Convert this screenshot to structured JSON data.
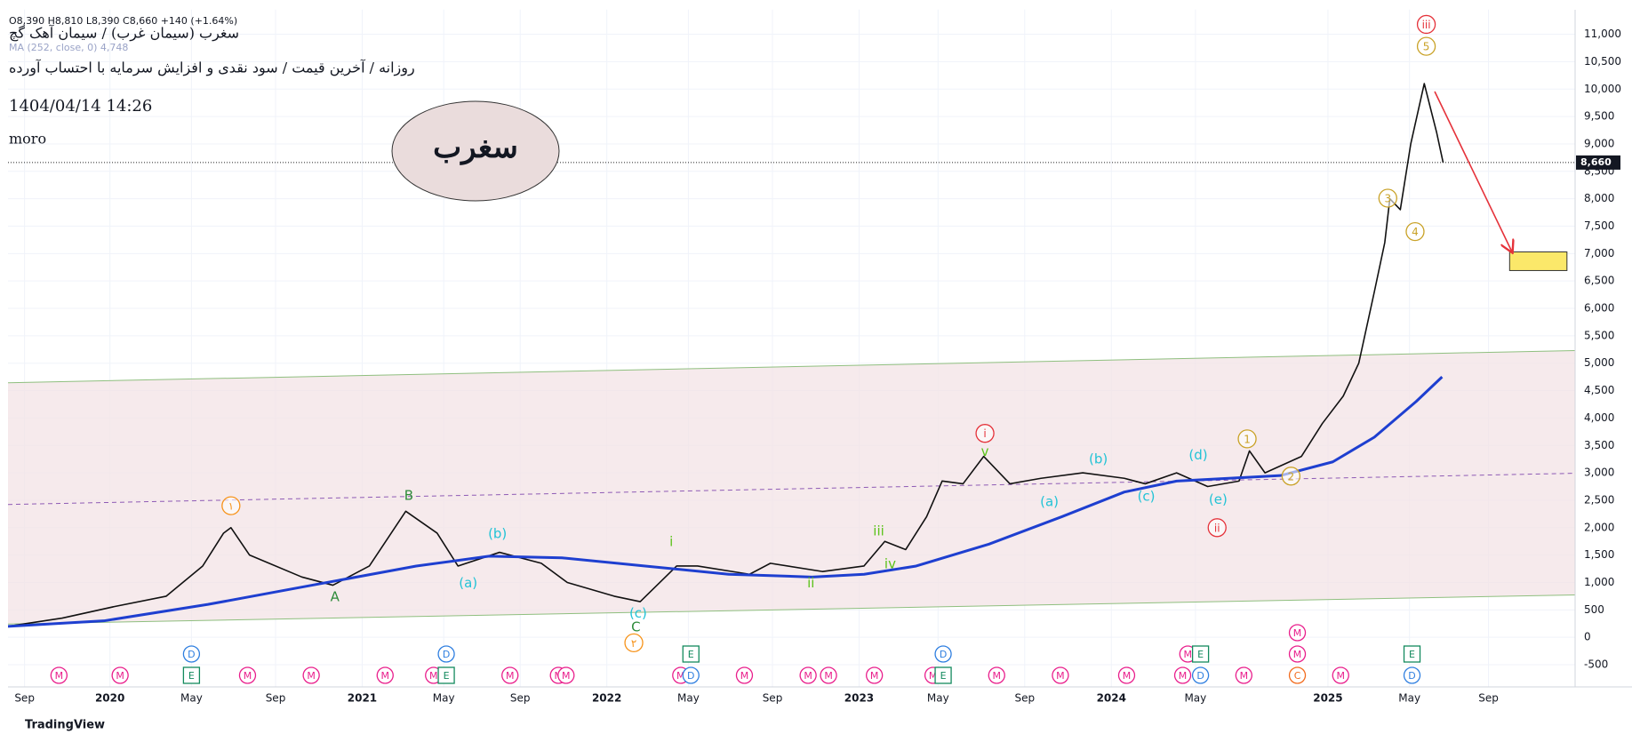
{
  "chart_data": {
    "type": "line",
    "title": "سغرب (سیمان غرب) / سیمان آهک گچ",
    "subtitle": "روزانه / آخرین قیمت / سود نقدی و افزایش سرمایه با احتساب آورده",
    "timestamp": "1404/04/14 14:26",
    "author": "moro",
    "badge": "سغرب",
    "ohlc_text": "O8,390 H8,810 L8,390 C8,660 +140 (+1.64%)",
    "ma_legend": "MA (252, close, 0) 4,748",
    "footer": "TradingView",
    "last_price": {
      "value": 8660,
      "label": "8,660"
    },
    "xlim": [
      2019.6,
      2025.75
    ],
    "ylim": [
      -900,
      11450
    ],
    "grid": true,
    "xticks": [
      {
        "value": 2019.665,
        "label": "Sep"
      },
      2020,
      {
        "value": 2020.32,
        "label": "May"
      },
      {
        "value": 2020.65,
        "label": "Sep"
      },
      {
        "value": 2020.99,
        "label": "2021"
      },
      {
        "value": 2021.31,
        "label": "May"
      },
      {
        "value": 2021.61,
        "label": "Sep"
      },
      {
        "value": 2021.95,
        "label": "2022"
      },
      {
        "value": 2022.27,
        "label": "May"
      },
      {
        "value": 2022.6,
        "label": "Sep"
      },
      {
        "value": 2022.94,
        "label": "2023"
      },
      {
        "value": 2023.25,
        "label": "May"
      },
      {
        "value": 2023.59,
        "label": "Sep"
      },
      {
        "value": 2023.93,
        "label": "2024"
      },
      {
        "value": 2024.26,
        "label": "May"
      },
      {
        "value": 2024.78,
        "label": "2025"
      },
      {
        "value": 2025.1,
        "label": "May"
      },
      {
        "value": 2025.41,
        "label": "Sep"
      }
    ],
    "yticks": [
      -500,
      0,
      500,
      {
        "value": 1000,
        "label": "1,000"
      },
      {
        "value": 1500,
        "label": "1,500"
      },
      {
        "value": 2000,
        "label": "2,000"
      },
      {
        "value": 2500,
        "label": "2,500"
      },
      {
        "value": 3000,
        "label": "3,000"
      },
      {
        "value": 3500,
        "label": "3,500"
      },
      {
        "value": 4000,
        "label": "4,000"
      },
      {
        "value": 4500,
        "label": "4,500"
      },
      {
        "value": 5000,
        "label": "5,000"
      },
      {
        "value": 5500,
        "label": "5,500"
      },
      {
        "value": 6000,
        "label": "6,000"
      },
      {
        "value": 6500,
        "label": "6,500"
      },
      {
        "value": 7000,
        "label": "7,000"
      },
      {
        "value": 7500,
        "label": "7,500"
      },
      {
        "value": 8000,
        "label": "8,000"
      },
      {
        "value": 8500,
        "label": "8,500"
      },
      {
        "value": 9000,
        "label": "9,000"
      },
      {
        "value": 9500,
        "label": "9,500"
      },
      {
        "value": 10000,
        "label": "10,000"
      },
      {
        "value": 10500,
        "label": "10,500"
      },
      {
        "value": 11000,
        "label": "11,000"
      }
    ],
    "series": [
      {
        "name": "Price",
        "color": "#111111",
        "x": [
          2019.6,
          2019.813,
          2020.017,
          2020.221,
          2020.364,
          2020.446,
          2020.475,
          2020.548,
          2020.753,
          2020.875,
          2021.018,
          2021.161,
          2021.284,
          2021.366,
          2021.529,
          2021.693,
          2021.795,
          2021.979,
          2022.081,
          2022.224,
          2022.306,
          2022.51,
          2022.592,
          2022.796,
          2022.959,
          2023.041,
          2023.123,
          2023.205,
          2023.266,
          2023.348,
          2023.429,
          2023.532,
          2023.654,
          2023.818,
          2023.981,
          2024.063,
          2024.186,
          2024.308,
          2024.431,
          2024.472,
          2024.533,
          2024.676,
          2024.758,
          2024.84,
          2024.901,
          2024.962,
          2025.003,
          2025.023,
          2025.064,
          2025.105,
          2025.158,
          2025.207,
          2025.232
        ],
        "values": [
          200,
          350,
          560,
          750,
          1300,
          1900,
          2000,
          1500,
          1100,
          950,
          1300,
          2300,
          1900,
          1300,
          1550,
          1350,
          1000,
          750,
          650,
          1300,
          1300,
          1150,
          1350,
          1200,
          1300,
          1750,
          1600,
          2200,
          2850,
          2800,
          3300,
          2800,
          2900,
          3000,
          2900,
          2800,
          3000,
          2750,
          2850,
          3400,
          3000,
          3300,
          3900,
          4400,
          5000,
          6300,
          7200,
          8000,
          7800,
          9000,
          10100,
          9200,
          8660
        ]
      },
      {
        "name": "MA (252)",
        "color": "#1e3fd0",
        "x": [
          2019.6,
          2019.976,
          2020.385,
          2020.793,
          2021.202,
          2021.488,
          2021.774,
          2022.101,
          2022.428,
          2022.755,
          2022.96,
          2023.164,
          2023.45,
          2023.736,
          2023.981,
          2024.186,
          2024.39,
          2024.594,
          2024.799,
          2024.962,
          2025.126,
          2025.228
        ],
        "values": [
          200,
          300,
          600,
          950,
          1300,
          1480,
          1450,
          1300,
          1150,
          1100,
          1150,
          1300,
          1700,
          2200,
          2650,
          2850,
          2900,
          2950,
          3200,
          3650,
          4300,
          4750
        ]
      }
    ],
    "channel": {
      "upper": [
        [
          2019.6,
          4643
        ],
        [
          2025.75,
          5231
        ]
      ],
      "lower": [
        [
          2019.6,
          241
        ],
        [
          2025.75,
          772
        ]
      ],
      "middle": [
        [
          2019.6,
          2423
        ],
        [
          2025.75,
          2992
        ]
      ],
      "fill": "#f3e3e5",
      "edge_color": "#8fbf7f",
      "middle_color": "#8e5bb5"
    },
    "arrow": {
      "from": [
        2025.199,
        9956
      ],
      "to": [
        2025.502,
        7034
      ],
      "color": "#e5323a"
    },
    "target_box": {
      "x": [
        2025.493,
        2025.718
      ],
      "y": [
        6690,
        7030
      ],
      "color": "#fbe86a"
    },
    "annotations": [
      {
        "text": "۱",
        "x": 2020.475,
        "y": 2400,
        "color": "#f7931a",
        "circled": true
      },
      {
        "text": "B",
        "x": 2021.173,
        "y": 2600,
        "color": "#2e8b3a"
      },
      {
        "text": "A",
        "x": 2020.883,
        "y": 750,
        "color": "#2e8b3a"
      },
      {
        "text": "(b)",
        "x": 2021.521,
        "y": 1900,
        "color": "#22c3d6"
      },
      {
        "text": "(a)",
        "x": 2021.406,
        "y": 1000,
        "color": "#22c3d6"
      },
      {
        "text": "(c)",
        "x": 2022.073,
        "y": 450,
        "color": "#22c3d6"
      },
      {
        "text": "C",
        "x": 2022.064,
        "y": 200,
        "color": "#2e8b3a"
      },
      {
        "text": "۲",
        "x": 2022.056,
        "y": -100,
        "color": "#f7931a",
        "circled": true
      },
      {
        "text": "i",
        "x": 2022.203,
        "y": 1750,
        "color": "#5cc21a"
      },
      {
        "text": "ii",
        "x": 2022.751,
        "y": 1000,
        "color": "#5cc21a"
      },
      {
        "text": "iii",
        "x": 2023.017,
        "y": 1950,
        "color": "#5cc21a"
      },
      {
        "text": "iv",
        "x": 2023.062,
        "y": 1350,
        "color": "#5cc21a"
      },
      {
        "text": "v",
        "x": 2023.434,
        "y": 3400,
        "color": "#5cc21a"
      },
      {
        "text": "i",
        "x": 2023.434,
        "y": 3720,
        "color": "#e5323a",
        "circled": true
      },
      {
        "text": "(b)",
        "x": 2023.879,
        "y": 3260,
        "color": "#22c3d6"
      },
      {
        "text": "(a)",
        "x": 2023.687,
        "y": 2480,
        "color": "#22c3d6"
      },
      {
        "text": "(c)",
        "x": 2024.067,
        "y": 2580,
        "color": "#22c3d6"
      },
      {
        "text": "(d)",
        "x": 2024.271,
        "y": 3330,
        "color": "#22c3d6"
      },
      {
        "text": "(e)",
        "x": 2024.349,
        "y": 2520,
        "color": "#22c3d6"
      },
      {
        "text": "ii",
        "x": 2024.345,
        "y": 2000,
        "color": "#e5323a",
        "circled": true
      },
      {
        "text": "1",
        "x": 2024.463,
        "y": 3620,
        "color": "#c9a227",
        "circled": true
      },
      {
        "text": "2",
        "x": 2024.635,
        "y": 2940,
        "color": "#c9a227",
        "circled": true
      },
      {
        "text": "3",
        "x": 2025.015,
        "y": 8010,
        "color": "#c9a227",
        "circled": true
      },
      {
        "text": "4",
        "x": 2025.122,
        "y": 7400,
        "color": "#c9a227",
        "circled": true
      },
      {
        "text": "5",
        "x": 2025.166,
        "y": 10780,
        "color": "#c9a227",
        "circled": true
      },
      {
        "text": "iii",
        "x": 2025.166,
        "y": 11180,
        "color": "#e5323a",
        "circled": true
      }
    ],
    "event_colors": {
      "M": "#e91e8c",
      "D": "#2f7fe0",
      "E": "#138a5e",
      "C": "#f26b1d"
    },
    "events": [
      {
        "label": "M",
        "x": 2019.8
      },
      {
        "label": "M",
        "x": 2020.04
      },
      {
        "label": "E",
        "x": 2020.32
      },
      {
        "label": "D",
        "x": 2020.32
      },
      {
        "label": "M",
        "x": 2020.54
      },
      {
        "label": "M",
        "x": 2020.79
      },
      {
        "label": "M",
        "x": 2021.08
      },
      {
        "label": "M",
        "x": 2021.27
      },
      {
        "label": "E",
        "x": 2021.32
      },
      {
        "label": "D",
        "x": 2021.32
      },
      {
        "label": "M",
        "x": 2021.57
      },
      {
        "label": "M",
        "x": 2021.76
      },
      {
        "label": "M",
        "x": 2021.79
      },
      {
        "label": "M",
        "x": 2022.24
      },
      {
        "label": "D",
        "x": 2022.28
      },
      {
        "label": "E",
        "x": 2022.28
      },
      {
        "label": "M",
        "x": 2022.49
      },
      {
        "label": "M",
        "x": 2022.74
      },
      {
        "label": "M",
        "x": 2022.82
      },
      {
        "label": "M",
        "x": 2023.0
      },
      {
        "label": "M",
        "x": 2023.23
      },
      {
        "label": "E",
        "x": 2023.27
      },
      {
        "label": "D",
        "x": 2023.27
      },
      {
        "label": "M",
        "x": 2023.48
      },
      {
        "label": "M",
        "x": 2023.73
      },
      {
        "label": "M",
        "x": 2023.99
      },
      {
        "label": "M",
        "x": 2024.21
      },
      {
        "label": "M",
        "x": 2024.23
      },
      {
        "label": "D",
        "x": 2024.28
      },
      {
        "label": "E",
        "x": 2024.28
      },
      {
        "label": "M",
        "x": 2024.45
      },
      {
        "label": "C",
        "x": 2024.66
      },
      {
        "label": "M",
        "x": 2024.66
      },
      {
        "label": "M",
        "x": 2024.66
      },
      {
        "label": "M",
        "x": 2024.83
      },
      {
        "label": "D",
        "x": 2025.11
      },
      {
        "label": "E",
        "x": 2025.11
      }
    ]
  }
}
